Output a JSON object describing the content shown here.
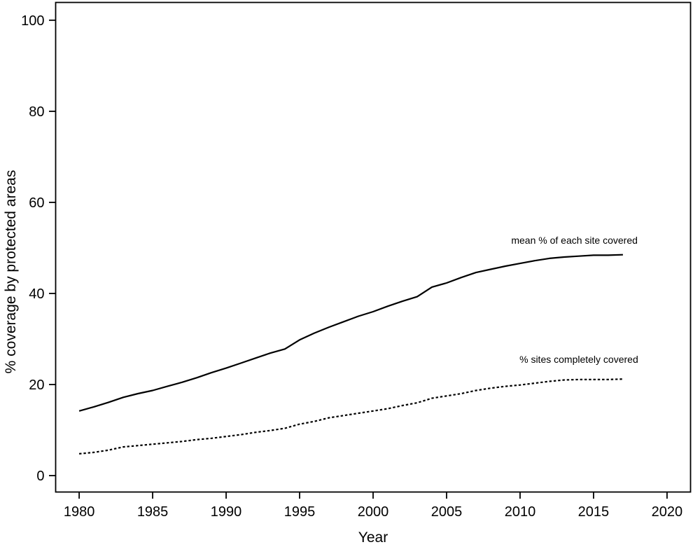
{
  "figure": {
    "background": "#ffffff",
    "axis_color": "#000000"
  },
  "chart_data": {
    "type": "line",
    "title": "",
    "xlabel": "Year",
    "ylabel": "% coverage by protected areas",
    "grid": false,
    "legend_position": "inline-annotations",
    "axis_color": "#000000",
    "xlim": [
      1978.4,
      2021.6
    ],
    "ylim": [
      -3.6,
      103.9
    ],
    "x_ticks": [
      1980,
      1985,
      1990,
      1995,
      2000,
      2005,
      2010,
      2015,
      2020
    ],
    "y_ticks": [
      0,
      20,
      40,
      60,
      80,
      100
    ],
    "x": [
      1980,
      1981,
      1982,
      1983,
      1984,
      1985,
      1986,
      1987,
      1988,
      1989,
      1990,
      1991,
      1992,
      1993,
      1994,
      1995,
      1996,
      1997,
      1998,
      1999,
      2000,
      2001,
      2002,
      2003,
      2004,
      2005,
      2006,
      2007,
      2008,
      2009,
      2010,
      2011,
      2012,
      2013,
      2014,
      2015,
      2016,
      2017
    ],
    "series": [
      {
        "name": "mean % of each site covered",
        "line_style": "solid",
        "color": "#000000",
        "values": [
          14.2,
          15.1,
          16.1,
          17.2,
          18.0,
          18.7,
          19.6,
          20.5,
          21.5,
          22.6,
          23.6,
          24.7,
          25.8,
          26.9,
          27.8,
          29.8,
          31.3,
          32.6,
          33.8,
          35.0,
          36.0,
          37.2,
          38.3,
          39.3,
          41.4,
          42.3,
          43.5,
          44.6,
          45.3,
          46.0,
          46.6,
          47.2,
          47.7,
          48.0,
          48.2,
          48.4,
          48.4,
          48.5
        ],
        "annotation": {
          "x": 2013.7,
          "y": 51.7
        }
      },
      {
        "name": "% sites completely covered",
        "line_style": "dotted",
        "color": "#000000",
        "values": [
          4.8,
          5.1,
          5.6,
          6.3,
          6.6,
          6.9,
          7.2,
          7.5,
          7.9,
          8.2,
          8.6,
          9.0,
          9.5,
          9.9,
          10.4,
          11.3,
          11.9,
          12.7,
          13.2,
          13.7,
          14.2,
          14.7,
          15.4,
          16.0,
          17.0,
          17.5,
          18.0,
          18.7,
          19.2,
          19.6,
          19.9,
          20.3,
          20.7,
          21.0,
          21.1,
          21.1,
          21.1,
          21.2
        ],
        "annotation": {
          "x": 2014.0,
          "y": 25.5
        }
      }
    ]
  }
}
